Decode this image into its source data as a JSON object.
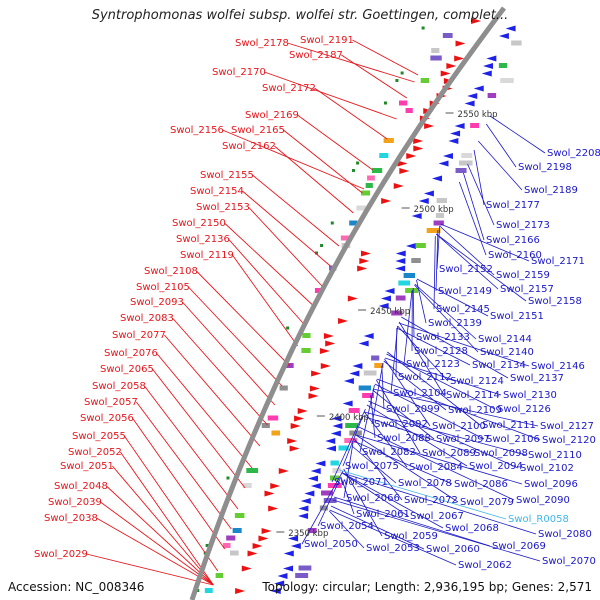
{
  "title": "Syntrophomonas wolfei subsp. wolfei str. Goettingen, complet...",
  "footer": {
    "accession": "Accession: NC_008346",
    "summary": "Topology: circular; Length: 2,936,195 bp; Genes: 2,571"
  },
  "colors": {
    "forward_label": "#e8151b",
    "reverse_label": "#1a17c9",
    "rna_label": "#3fb6e8",
    "backbone": "#8e8e8e",
    "forward_gene": "#ee1111",
    "reverse_gene": "#1e22e6"
  },
  "scale_ticks": [
    "2550 kbp",
    "2500 kbp",
    "2450 kbp",
    "2400 kbp",
    "2350 kbp"
  ],
  "forward_labels": [
    "Swol_2191",
    "Swol_2178",
    "Swol_2187",
    "Swol_2170",
    "Swol_2172",
    "Swol_2169",
    "Swol_2156",
    "Swol_2165",
    "Swol_2162",
    "Swol_2155",
    "Swol_2154",
    "Swol_2153",
    "Swol_2150",
    "Swol_2136",
    "Swol_2119",
    "Swol_2108",
    "Swol_2105",
    "Swol_2093",
    "Swol_2083",
    "Swol_2077",
    "Swol_2076",
    "Swol_2065",
    "Swol_2058",
    "Swol_2057",
    "Swol_2056",
    "Swol_2055",
    "Swol_2052",
    "Swol_2051",
    "Swol_2048",
    "Swol_2039",
    "Swol_2038",
    "Swol_2029"
  ],
  "reverse_labels": [
    "Swol_2208",
    "Swol_2198",
    "Swol_2189",
    "Swol_2177",
    "Swol_2173",
    "Swol_2166",
    "Swol_2160",
    "Swol_2171",
    "Swol_2152",
    "Swol_2159",
    "Swol_2157",
    "Swol_2149",
    "Swol_2158",
    "Swol_2145",
    "Swol_2151",
    "Swol_2139",
    "Swol_2133",
    "Swol_2144",
    "Swol_2128",
    "Swol_2140",
    "Swol_2123",
    "Swol_2134",
    "Swol_2146",
    "Swol_2112",
    "Swol_2124",
    "Swol_2137",
    "Swol_2104",
    "Swol_2114",
    "Swol_2130",
    "Swol_2099",
    "Swol_2109",
    "Swol_2126",
    "Swol_2092",
    "Swol_2100",
    "Swol_2111",
    "Swol_2127",
    "Swol_2088",
    "Swol_2097",
    "Swol_2106",
    "Swol_2120",
    "Swol_2082",
    "Swol_2089",
    "Swol_2098",
    "Swol_2110",
    "Swol_2075",
    "Swol_2084",
    "Swol_2094",
    "Swol_2102",
    "Swol_2071",
    "Swol_2078",
    "Swol_2086",
    "Swol_2096",
    "Swol_2066",
    "Swol_2072",
    "Swol_2079",
    "Swol_2090",
    "Swol_2061",
    "Swol_2067",
    "Swol_2054",
    "Swol_2068",
    "Swol_2080",
    "Swol_2059",
    "Swol_2050",
    "Swol_2053",
    "Swol_2060",
    "Swol_2069",
    "Swol_2062",
    "Swol_2070"
  ],
  "rna_labels": [
    "Swol_R0058"
  ]
}
